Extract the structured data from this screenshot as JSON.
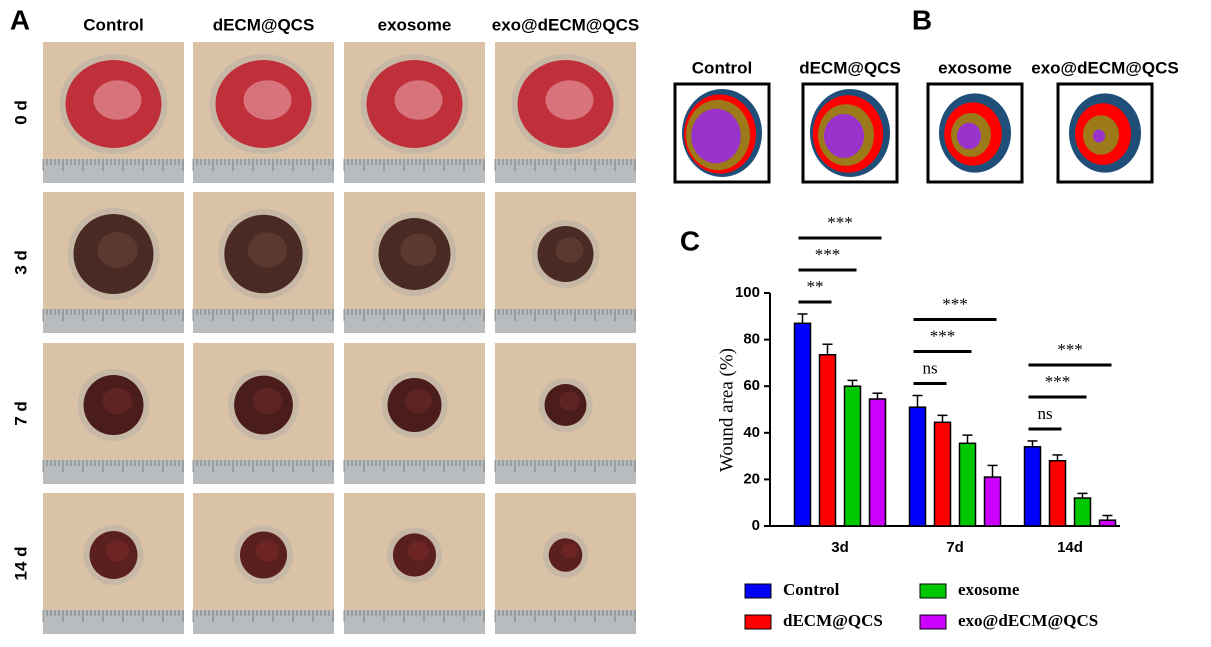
{
  "panel_labels": {
    "a": "A",
    "b": "B",
    "c": "C"
  },
  "photo_grid": {
    "columns": [
      "Control",
      "dECM@QCS",
      "exosome",
      "exo@dECM@QCS"
    ],
    "rows": [
      "0 d",
      "3 d",
      "7 d",
      "14 d"
    ]
  },
  "schematic": {
    "columns": [
      "Control",
      "dECM@QCS",
      "exosome",
      "exo@dECM@QCS"
    ]
  },
  "chart_data": {
    "type": "bar",
    "ylabel": "Wound area (%)",
    "categories": [
      "3d",
      "7d",
      "14d"
    ],
    "series": [
      {
        "name": "Control",
        "color": "#0000ff",
        "values": [
          87,
          51,
          34
        ],
        "errors": [
          4,
          5,
          2.5
        ]
      },
      {
        "name": "dECM@QCS",
        "color": "#ff0000",
        "values": [
          73.5,
          44.5,
          28
        ],
        "errors": [
          4.5,
          3,
          2.5
        ]
      },
      {
        "name": "exosome",
        "color": "#00c800",
        "values": [
          60,
          35.5,
          12
        ],
        "errors": [
          2.5,
          3.5,
          2
        ]
      },
      {
        "name": "exo@dECM@QCS",
        "color": "#cc00ff",
        "values": [
          54.5,
          21,
          2.5
        ],
        "errors": [
          2.5,
          5,
          2
        ]
      }
    ],
    "ylim": [
      0,
      100
    ],
    "yticks": [
      0,
      20,
      40,
      60,
      80,
      100
    ],
    "annotations": [
      {
        "text": "**",
        "category": "3d",
        "pair": [
          "Control",
          "dECM@QCS"
        ]
      },
      {
        "text": "***",
        "category": "3d",
        "pair": [
          "Control",
          "exosome"
        ]
      },
      {
        "text": "***",
        "category": "3d",
        "pair": [
          "Control",
          "exo@dECM@QCS"
        ]
      },
      {
        "text": "ns",
        "category": "7d",
        "pair": [
          "Control",
          "dECM@QCS"
        ]
      },
      {
        "text": "***",
        "category": "7d",
        "pair": [
          "Control",
          "exosome"
        ]
      },
      {
        "text": "***",
        "category": "7d",
        "pair": [
          "Control",
          "exo@dECM@QCS"
        ]
      },
      {
        "text": "ns",
        "category": "14d",
        "pair": [
          "Control",
          "dECM@QCS"
        ]
      },
      {
        "text": "***",
        "category": "14d",
        "pair": [
          "Control",
          "exosome"
        ]
      },
      {
        "text": "***",
        "category": "14d",
        "pair": [
          "Control",
          "exo@dECM@QCS"
        ]
      }
    ]
  }
}
